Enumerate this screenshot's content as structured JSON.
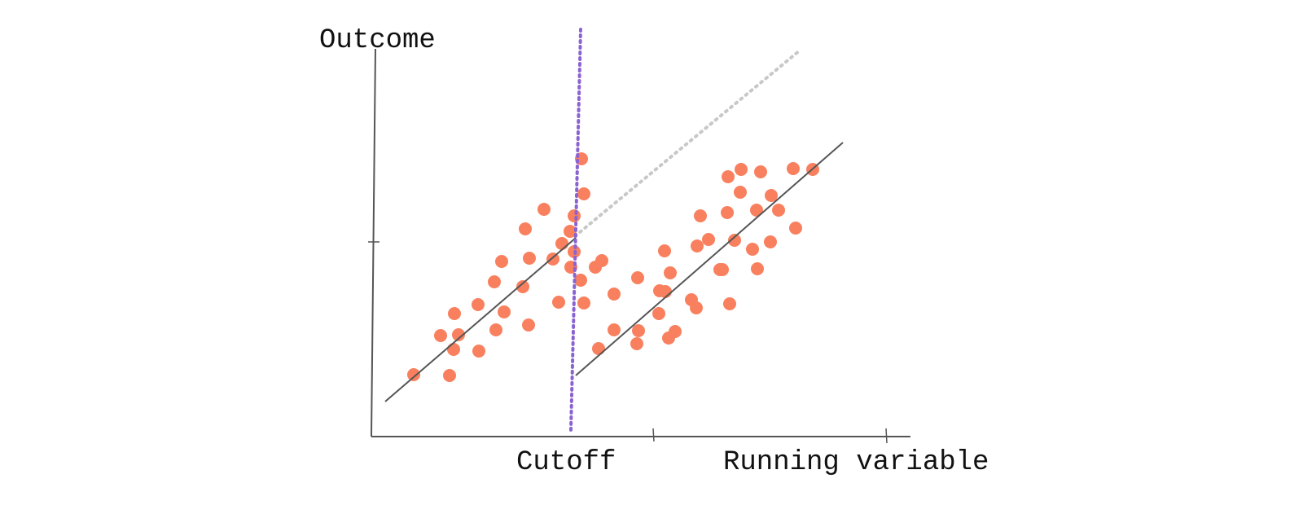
{
  "labels": {
    "y_axis": "Outcome",
    "cutoff": "Cutoff",
    "x_axis": "Running variable"
  }
}
